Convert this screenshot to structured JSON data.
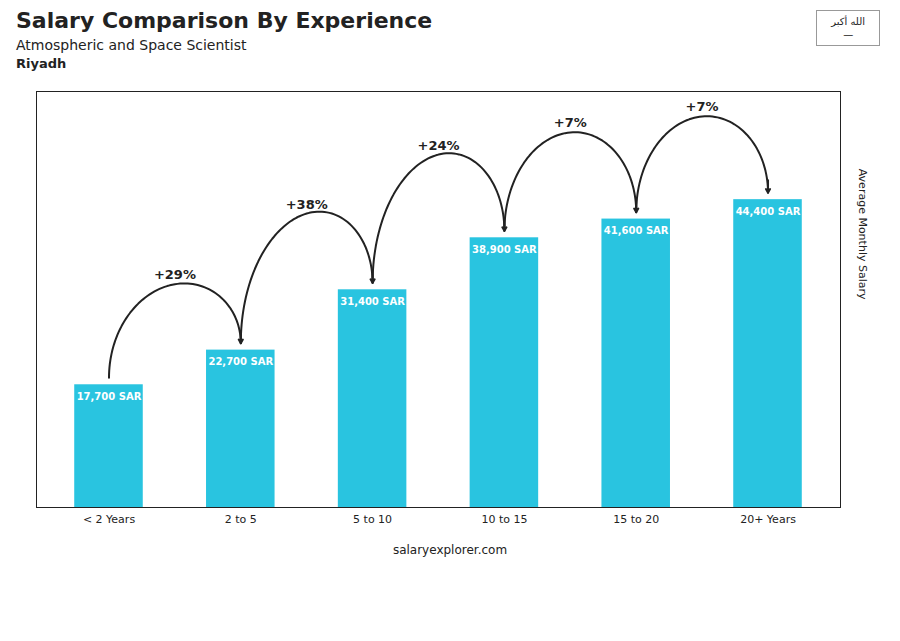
{
  "chart_data": {
    "type": "bar",
    "title": "Salary Comparison By Experience",
    "subtitle": "Atmospheric and Space Scientist",
    "categories": [
      "< 2 Years",
      "2 to 5",
      "5 to 10",
      "10 to 15",
      "15 to 20",
      "20+ Years"
    ],
    "values": [
      17700,
      22700,
      31400,
      38900,
      41600,
      44400
    ],
    "value_labels": [
      "17,700 SAR",
      "22,700 SAR",
      "31,400 SAR",
      "38,900 SAR",
      "41,600 SAR",
      "44,400 SAR"
    ],
    "change_labels": [
      "+29%",
      "+38%",
      "+24%",
      "+7%",
      "+7%"
    ],
    "color": "#29c4e0",
    "ylabel": "Average Monthly Salary",
    "ylim": [
      0,
      60000
    ],
    "tick_labels": "x",
    "grid": false,
    "data_labels": true,
    "annotations": [
      "Riyadh",
      "الله أكبر",
      "—"
    ],
    "caption": "salaryexplorer.com"
  }
}
